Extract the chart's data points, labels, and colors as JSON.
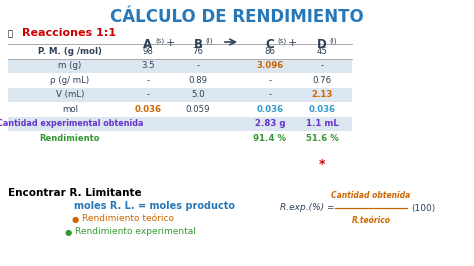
{
  "title": "CÁLCULO DE RENDIMIENTO",
  "title_color": "#2878b8",
  "bg_color": "#ffffff",
  "section1_label": "Reacciones 1:1",
  "section1_color": "#cc0000",
  "table": {
    "row_labels": [
      "P. M. (g /mol)",
      "m (g)",
      "ρ (g/ mL)",
      "V (mL)",
      "mol",
      "Cantidad experimental obtenida",
      "Rendimiento"
    ],
    "col_A": [
      "98",
      "3.5",
      "-",
      "-",
      "0.036",
      "",
      ""
    ],
    "col_B": [
      "76",
      "-",
      "0.89",
      "5.0",
      "0.059",
      "",
      ""
    ],
    "col_C": [
      "86",
      "3.096",
      "-",
      "-",
      "0.036",
      "2.83 g",
      "91.4 %"
    ],
    "col_D": [
      "45",
      "-",
      "0.76",
      "2.13",
      "0.036",
      "1.1 mL",
      "51.6 %"
    ],
    "row_bg_even": "#dce6f1",
    "row_bg_odd": "#ffffff",
    "special_colors": {
      "A_mol": "#cc6600",
      "C_m": "#cc6600",
      "D_V": "#cc6600",
      "C_mol": "#3399cc",
      "D_mol": "#3399cc",
      "C_exp": "#6633cc",
      "D_exp": "#6633cc",
      "C_rend": "#339933",
      "D_rend": "#339933",
      "row_label_exp": "#6633cc",
      "row_label_rend": "#339933"
    }
  },
  "section2_label": "Encontrar R. Limitante",
  "section2_color": "#000000",
  "bullet1_text": "moles R. L. = moles producto",
  "bullet1_color": "#2878b8",
  "bullet2_text": "Rendimiento teórico",
  "bullet2_color": "#cc6600",
  "bullet3_text": "Rendimiento experimental",
  "bullet3_color": "#339933",
  "formula_left": "R.exp.(%) =",
  "formula_num": "Cantidad obtenida",
  "formula_den": "R.teórico",
  "formula_suffix": "(100)",
  "formula_color": "#2e4057",
  "formula_fraction_color": "#cc6600",
  "star_color": "#cc0000"
}
